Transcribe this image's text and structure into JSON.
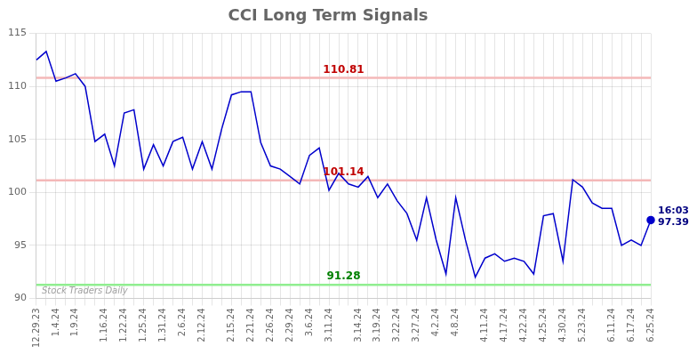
{
  "chart_data": {
    "type": "line",
    "title": "CCI Long Term Signals",
    "categories": [
      "12.29.23",
      null,
      "1.4.24",
      null,
      "1.9.24",
      null,
      null,
      "1.16.24",
      null,
      "1.22.24",
      null,
      "1.25.24",
      null,
      "1.31.24",
      null,
      "2.6.24",
      null,
      "2.12.24",
      null,
      null,
      "2.15.24",
      null,
      "2.21.24",
      null,
      "2.26.24",
      null,
      "2.29.24",
      null,
      "3.6.24",
      null,
      "3.11.24",
      null,
      null,
      "3.14.24",
      null,
      "3.19.24",
      null,
      "3.22.24",
      null,
      "3.27.24",
      null,
      "4.2.24",
      null,
      "4.8.24",
      null,
      null,
      "4.11.24",
      null,
      "4.17.24",
      null,
      "4.22.24",
      null,
      "4.25.24",
      null,
      "4.30.24",
      null,
      "5.23.24",
      null,
      null,
      "6.11.24",
      null,
      "6.17.24",
      null,
      "6.25.24"
    ],
    "values": [
      112.5,
      113.3,
      110.5,
      110.8,
      111.2,
      110.0,
      104.8,
      105.5,
      102.5,
      107.5,
      107.8,
      102.2,
      104.5,
      102.5,
      104.8,
      105.2,
      102.2,
      104.8,
      102.2,
      106.0,
      109.2,
      109.5,
      109.5,
      104.7,
      102.5,
      102.2,
      101.5,
      100.8,
      103.5,
      104.2,
      100.2,
      101.8,
      100.8,
      100.5,
      101.5,
      99.5,
      100.8,
      99.2,
      98.0,
      95.5,
      99.5,
      95.5,
      92.3,
      99.5,
      95.5,
      92.0,
      93.8,
      94.2,
      93.5,
      93.8,
      93.5,
      92.3,
      97.8,
      98.0,
      93.5,
      101.2,
      100.5,
      99.0,
      98.5,
      98.5,
      95.0,
      95.5,
      95.0,
      97.39
    ],
    "color": "#0000cc",
    "ylim": [
      90,
      115
    ],
    "yticks": [
      90,
      95,
      100,
      105,
      110,
      115
    ],
    "grid": true,
    "annotations": [
      {
        "type": "hline",
        "y": 110.81,
        "text": "110.81",
        "color": "#f4b8b8",
        "text_color": "#c00000"
      },
      {
        "type": "hline",
        "y": 101.14,
        "text": "101.14",
        "color": "#f4b8b8",
        "text_color": "#c00000"
      },
      {
        "type": "hline",
        "y": 91.28,
        "text": "91.28",
        "color": "#90ee90",
        "text_color": "#008000"
      },
      {
        "type": "point",
        "x": "6.25.24",
        "y": 97.39,
        "text": "16:03\n97.39",
        "color": "#0000cc",
        "text_color": "#000080"
      },
      {
        "type": "text",
        "text": "Stock Traders Daily",
        "color": "#a0a0a0"
      }
    ]
  }
}
